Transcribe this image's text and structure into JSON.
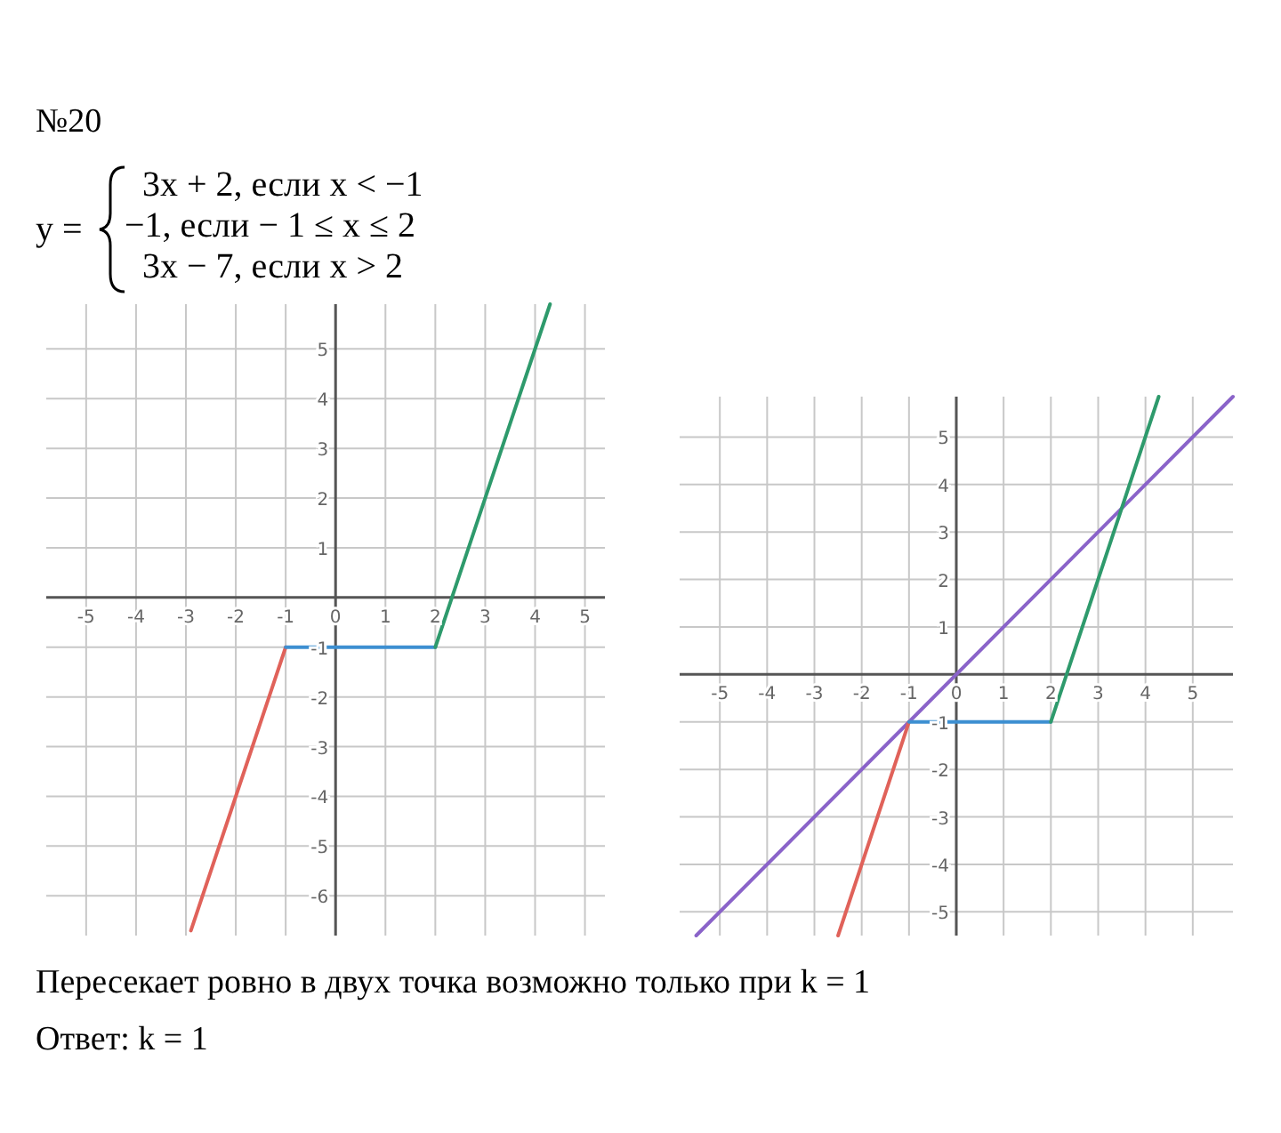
{
  "chart_data": [
    {
      "type": "line",
      "title": "№20",
      "annotations": [
        "y =",
        "3x + 2, если x < −1",
        "−1, если − 1 ≤ x ≤ 2",
        "3x − 7, если x > 2"
      ],
      "xlim": [
        -5.8,
        5.4
      ],
      "ylim": [
        -6.8,
        5.9
      ],
      "xticks": [
        -5,
        -4,
        -3,
        -2,
        -1,
        0,
        1,
        2,
        3,
        4,
        5
      ],
      "yticks": [
        -6,
        -5,
        -4,
        -3,
        -2,
        -1,
        1,
        2,
        3,
        4,
        5
      ],
      "grid": true,
      "marker": "none",
      "line_style": "solid",
      "series": [
        {
          "color": "#e0625a",
          "x": [
            -2.9,
            -1
          ],
          "values": [
            -6.7,
            -1
          ]
        },
        {
          "color": "#3d8fd1",
          "x": [
            -1,
            2
          ],
          "values": [
            -1,
            -1
          ]
        },
        {
          "color": "#2e9a6c",
          "x": [
            2,
            4.3
          ],
          "values": [
            -1,
            5.9
          ]
        }
      ]
    },
    {
      "type": "line",
      "annotations": [
        "Пересекает ровно в двух точка возможно только при k = 1",
        "Ответ: k = 1"
      ],
      "xlim": [
        -5.85,
        5.85
      ],
      "ylim": [
        -5.5,
        5.85
      ],
      "xticks": [
        -5,
        -4,
        -3,
        -2,
        -1,
        0,
        1,
        2,
        3,
        4,
        5
      ],
      "yticks": [
        -5,
        -4,
        -3,
        -2,
        -1,
        1,
        2,
        3,
        4,
        5
      ],
      "grid": true,
      "marker": "none",
      "line_style": "solid",
      "series": [
        {
          "color": "#8a63c9",
          "x": [
            -5.5,
            5.85
          ],
          "values": [
            -5.5,
            5.85
          ]
        },
        {
          "color": "#e0625a",
          "x": [
            -2.5,
            -1
          ],
          "values": [
            -5.5,
            -1
          ]
        },
        {
          "color": "#3d8fd1",
          "x": [
            -1,
            2
          ],
          "values": [
            -1,
            -1
          ]
        },
        {
          "color": "#2e9a6c",
          "x": [
            2,
            4.28
          ],
          "values": [
            -1,
            5.85
          ]
        }
      ]
    }
  ]
}
